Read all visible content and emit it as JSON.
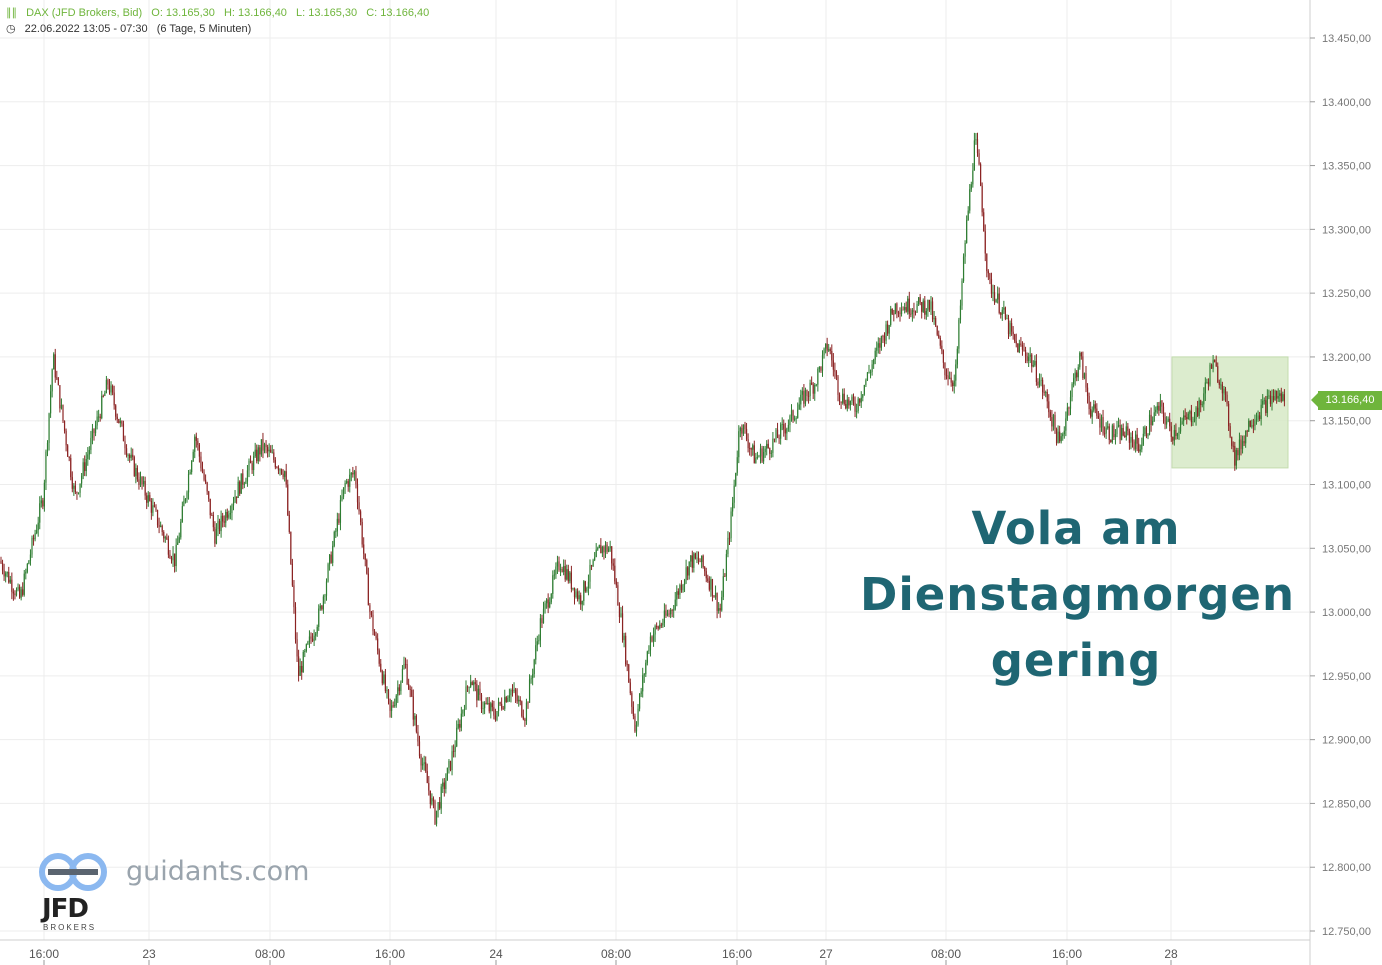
{
  "header": {
    "instrument": "DAX (JFD Brokers, Bid)",
    "open": "O: 13.165,30",
    "high": "H: 13.166,40",
    "low": "L: 13.165,30",
    "close": "C: 13.166,40",
    "range": "22.06.2022 13:05 - 07:30",
    "period": "(6 Tage, 5 Minuten)"
  },
  "annotation": [
    "Vola am",
    "Dienstagmorgen",
    "gering"
  ],
  "watermark": "guidants.com",
  "logo": {
    "word": "JFD",
    "sub": "BROKERS"
  },
  "last_price_label": "13.166,40",
  "colors": {
    "up": "#2e7d32",
    "down": "#8b2323",
    "accent": "#6fb53c",
    "annotation": "#1f6673",
    "highlight": "#d6e9c6"
  },
  "chart_data": {
    "type": "line",
    "subtype": "candlestick",
    "title": "DAX (JFD Brokers, Bid)",
    "ylim": [
      12730,
      13480
    ],
    "y_ticks": [
      "13.450,00",
      "13.400,00",
      "13.350,00",
      "13.300,00",
      "13.250,00",
      "13.200,00",
      "13.150,00",
      "13.100,00",
      "13.050,00",
      "13.000,00",
      "12.950,00",
      "12.900,00",
      "12.850,00",
      "12.800,00",
      "12.750,00"
    ],
    "y_tick_values": [
      13450,
      13400,
      13350,
      13300,
      13250,
      13200,
      13150,
      13100,
      13050,
      13000,
      12950,
      12900,
      12850,
      12800,
      12750
    ],
    "x_tick_labels": [
      "16:00",
      "23",
      "08:00",
      "16:00",
      "24",
      "08:00",
      "16:00",
      "27",
      "08:00",
      "16:00",
      "28"
    ],
    "x_tick_index": [
      44,
      149,
      270,
      390,
      496,
      616,
      737,
      826,
      946,
      1067,
      1171
    ],
    "x_index_range": [
      0,
      1310
    ],
    "grid": true,
    "last_price": 13166.4,
    "series": [
      {
        "x": [
          0,
          20,
          43,
          53,
          63,
          75,
          90,
          108,
          130,
          153,
          175,
          195,
          215,
          240,
          262,
          285,
          298,
          320,
          345,
          355,
          370,
          390,
          405,
          420,
          435,
          450,
          470,
          480,
          495,
          510,
          525,
          540,
          560,
          580,
          600,
          610,
          620,
          635,
          650,
          670,
          690,
          700,
          712,
          720,
          732,
          740,
          755,
          770,
          790,
          805,
          815,
          828,
          840,
          855,
          865,
          880,
          895,
          910,
          930,
          945,
          955,
          965,
          975,
          980,
          988,
          1000,
          1015,
          1030,
          1045,
          1060,
          1070,
          1080,
          1090,
          1100,
          1110,
          1125,
          1140,
          1150,
          1160,
          1172,
          1185,
          1200,
          1212,
          1222,
          1235,
          1240,
          1250,
          1262,
          1275,
          1287
        ],
        "y": [
          13040,
          13010,
          13090,
          13200,
          13150,
          13090,
          13130,
          13180,
          13120,
          13080,
          13040,
          13140,
          13060,
          13100,
          13130,
          13110,
          12950,
          13000,
          13100,
          13110,
          13000,
          12920,
          12960,
          12890,
          12840,
          12880,
          12950,
          12930,
          12920,
          12940,
          12920,
          12990,
          13040,
          13010,
          13050,
          13050,
          13000,
          12910,
          12980,
          13000,
          13040,
          13040,
          13020,
          13000,
          13080,
          13150,
          13120,
          13130,
          13150,
          13170,
          13180,
          13210,
          13170,
          13160,
          13180,
          13210,
          13240,
          13240,
          13240,
          13190,
          13180,
          13290,
          13370,
          13340,
          13260,
          13240,
          13210,
          13200,
          13170,
          13130,
          13170,
          13200,
          13160,
          13150,
          13140,
          13140,
          13130,
          13150,
          13160,
          13140,
          13150,
          13160,
          13195,
          13180,
          13120,
          13130,
          13150,
          13160,
          13170,
          13166.4
        ]
      }
    ]
  }
}
